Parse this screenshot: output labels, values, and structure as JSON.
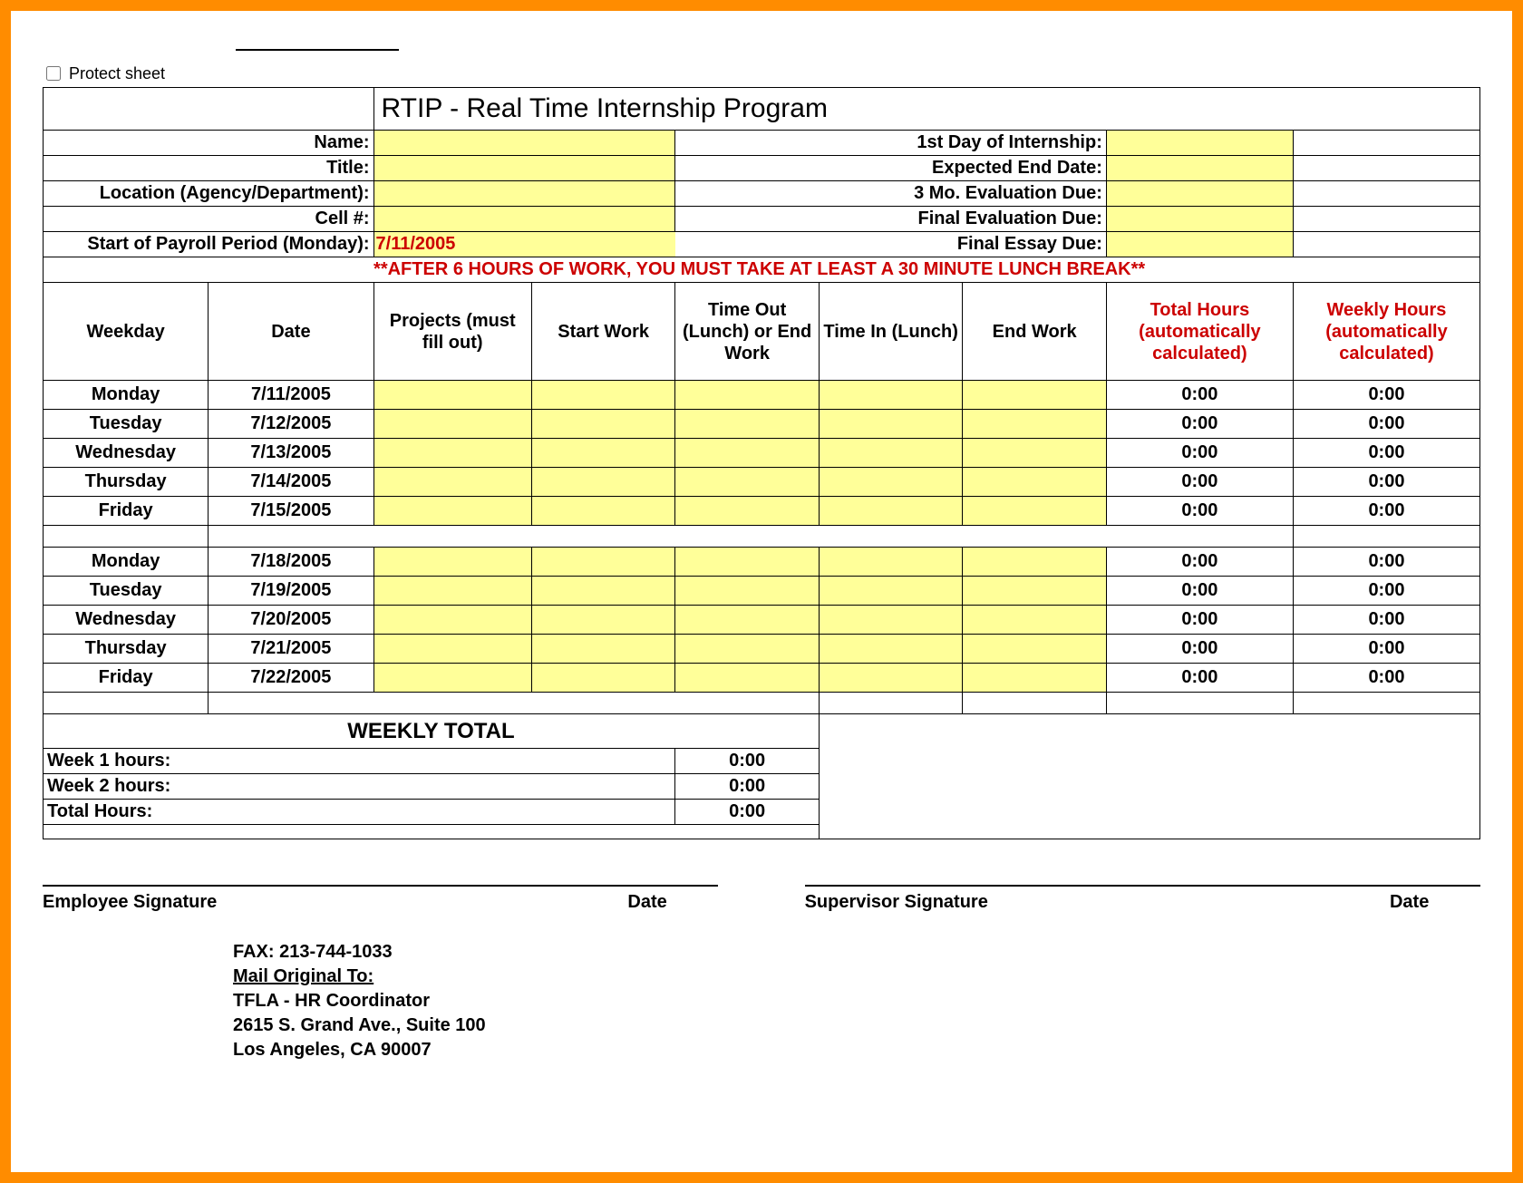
{
  "protect_label": "Protect sheet",
  "title": "RTIP - Real Time Internship Program",
  "info_rows": [
    {
      "left_label": "Name:",
      "right_label": "1st Day of Internship:"
    },
    {
      "left_label": "Title:",
      "right_label": "Expected End Date:"
    },
    {
      "left_label": "Location (Agency/Department):",
      "right_label": "3 Mo. Evaluation Due:"
    },
    {
      "left_label": "Cell #:",
      "right_label": "Final Evaluation Due:"
    },
    {
      "left_label": "Start of Payroll Period (Monday):",
      "left_value": "7/11/2005",
      "right_label": "Final Essay Due:"
    }
  ],
  "warning": "**AFTER 6 HOURS OF WORK, YOU MUST TAKE AT LEAST A 30 MINUTE LUNCH BREAK**",
  "columns": {
    "weekday": "Weekday",
    "date": "Date",
    "projects": "Projects (must fill out)",
    "start": "Start Work",
    "timeout": "Time Out (Lunch) or End Work",
    "timein": "Time In (Lunch)",
    "end": "End Work",
    "total": "Total Hours (automatically calculated)",
    "weekly": "Weekly Hours (automatically calculated)"
  },
  "week1": [
    {
      "day": "Monday",
      "date": "7/11/2005",
      "total": "0:00",
      "weekly": "0:00"
    },
    {
      "day": "Tuesday",
      "date": "7/12/2005",
      "total": "0:00",
      "weekly": "0:00"
    },
    {
      "day": "Wednesday",
      "date": "7/13/2005",
      "total": "0:00",
      "weekly": "0:00"
    },
    {
      "day": "Thursday",
      "date": "7/14/2005",
      "total": "0:00",
      "weekly": "0:00"
    },
    {
      "day": "Friday",
      "date": "7/15/2005",
      "total": "0:00",
      "weekly": "0:00"
    }
  ],
  "week2": [
    {
      "day": "Monday",
      "date": "7/18/2005",
      "total": "0:00",
      "weekly": "0:00"
    },
    {
      "day": "Tuesday",
      "date": "7/19/2005",
      "total": "0:00",
      "weekly": "0:00"
    },
    {
      "day": "Wednesday",
      "date": "7/20/2005",
      "total": "0:00",
      "weekly": "0:00"
    },
    {
      "day": "Thursday",
      "date": "7/21/2005",
      "total": "0:00",
      "weekly": "0:00"
    },
    {
      "day": "Friday",
      "date": "7/22/2005",
      "total": "0:00",
      "weekly": "0:00"
    }
  ],
  "weekly_total_heading": "WEEKLY TOTAL",
  "totals": {
    "w1_label": "Week 1 hours:",
    "w1_val": "0:00",
    "w2_label": "Week 2 hours:",
    "w2_val": "0:00",
    "tot_label": "Total Hours:",
    "tot_val": "0:00"
  },
  "signatures": {
    "emp": "Employee Signature",
    "date": "Date",
    "sup": "Supervisor Signature"
  },
  "footer": {
    "fax": "FAX:  213-744-1033",
    "mail_to": "Mail Original To:",
    "line1": "TFLA - HR Coordinator",
    "line2": "2615 S. Grand Ave., Suite 100",
    "line3": "Los Angeles, CA 90007"
  },
  "colors": {
    "frame": "#ff8c00",
    "highlight": "#ffff99",
    "warn_text": "#cc0000",
    "border": "#000000"
  },
  "col_widths_pct": [
    11.5,
    11.5,
    11.0,
    10.0,
    10.0,
    10.0,
    10.0,
    13.0,
    13.0
  ]
}
